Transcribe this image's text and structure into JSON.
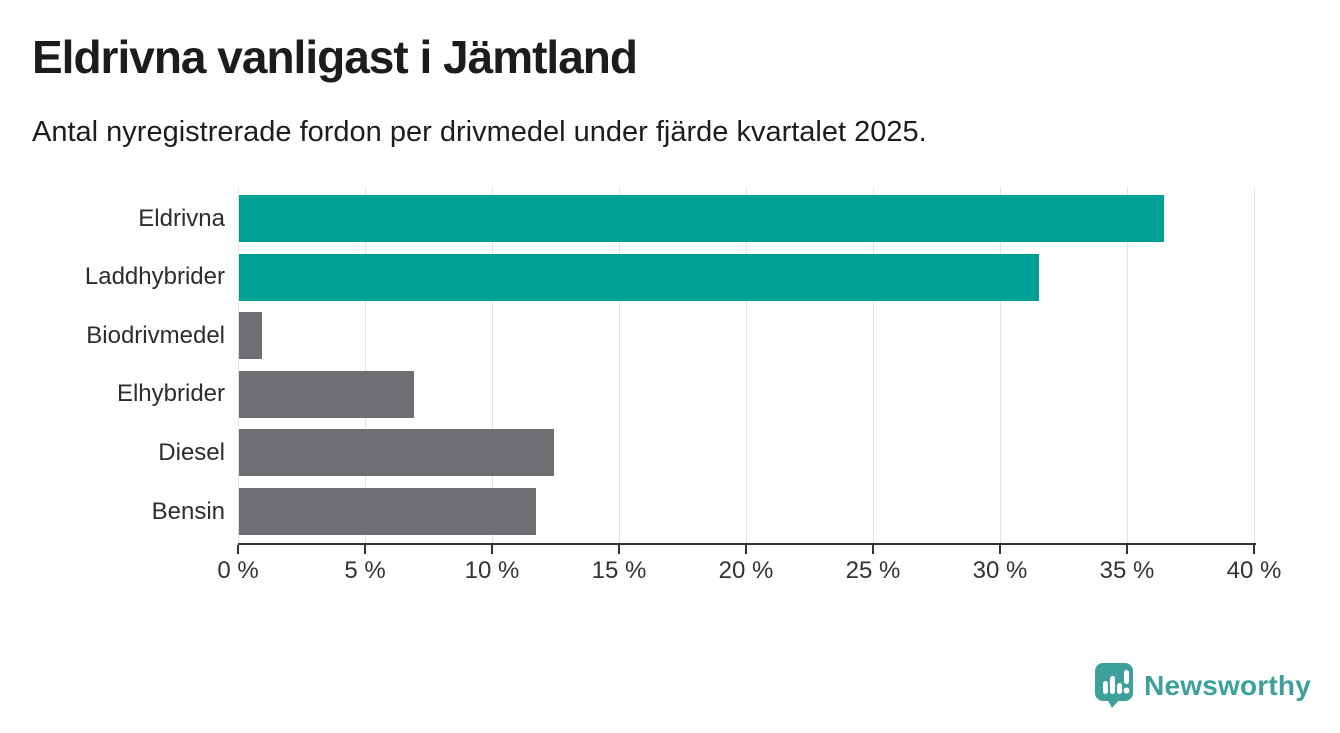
{
  "header": {
    "title": "Eldrivna vanligast i Jämtland",
    "subtitle": "Antal nyregistrerade fordon per drivmedel under fjärde kvartalet 2025."
  },
  "chart_data": {
    "type": "bar",
    "orientation": "horizontal",
    "title": "Eldrivna vanligast i Jämtland",
    "subtitle": "Antal nyregistrerade fordon per drivmedel under fjärde kvartalet 2025.",
    "categories": [
      "Eldrivna",
      "Laddhybrider",
      "Biodrivmedel",
      "Elhybrider",
      "Diesel",
      "Bensin"
    ],
    "values": [
      36.4,
      31.5,
      0.9,
      6.9,
      12.4,
      11.7
    ],
    "unit": "%",
    "highlighted": [
      true,
      true,
      false,
      false,
      false,
      false
    ],
    "xlabel": "",
    "ylabel": "",
    "xlim": [
      0,
      40
    ],
    "xticks": [
      0,
      5,
      10,
      15,
      20,
      25,
      30,
      35,
      40
    ],
    "tick_labels": [
      "0 %",
      "5 %",
      "10 %",
      "15 %",
      "20 %",
      "25 %",
      "30 %",
      "35 %",
      "40 %"
    ],
    "grid": "vertical",
    "legend": "none",
    "colors": {
      "highlight": "#00a096",
      "default": "#6e6e73",
      "gridline": "#e2e2e2",
      "axis": "#333333"
    }
  },
  "footer": {
    "brand": "Newsworthy",
    "brand_color": "#3da09a",
    "logo_icon": "speech-bubble-bar-chart-icon"
  }
}
